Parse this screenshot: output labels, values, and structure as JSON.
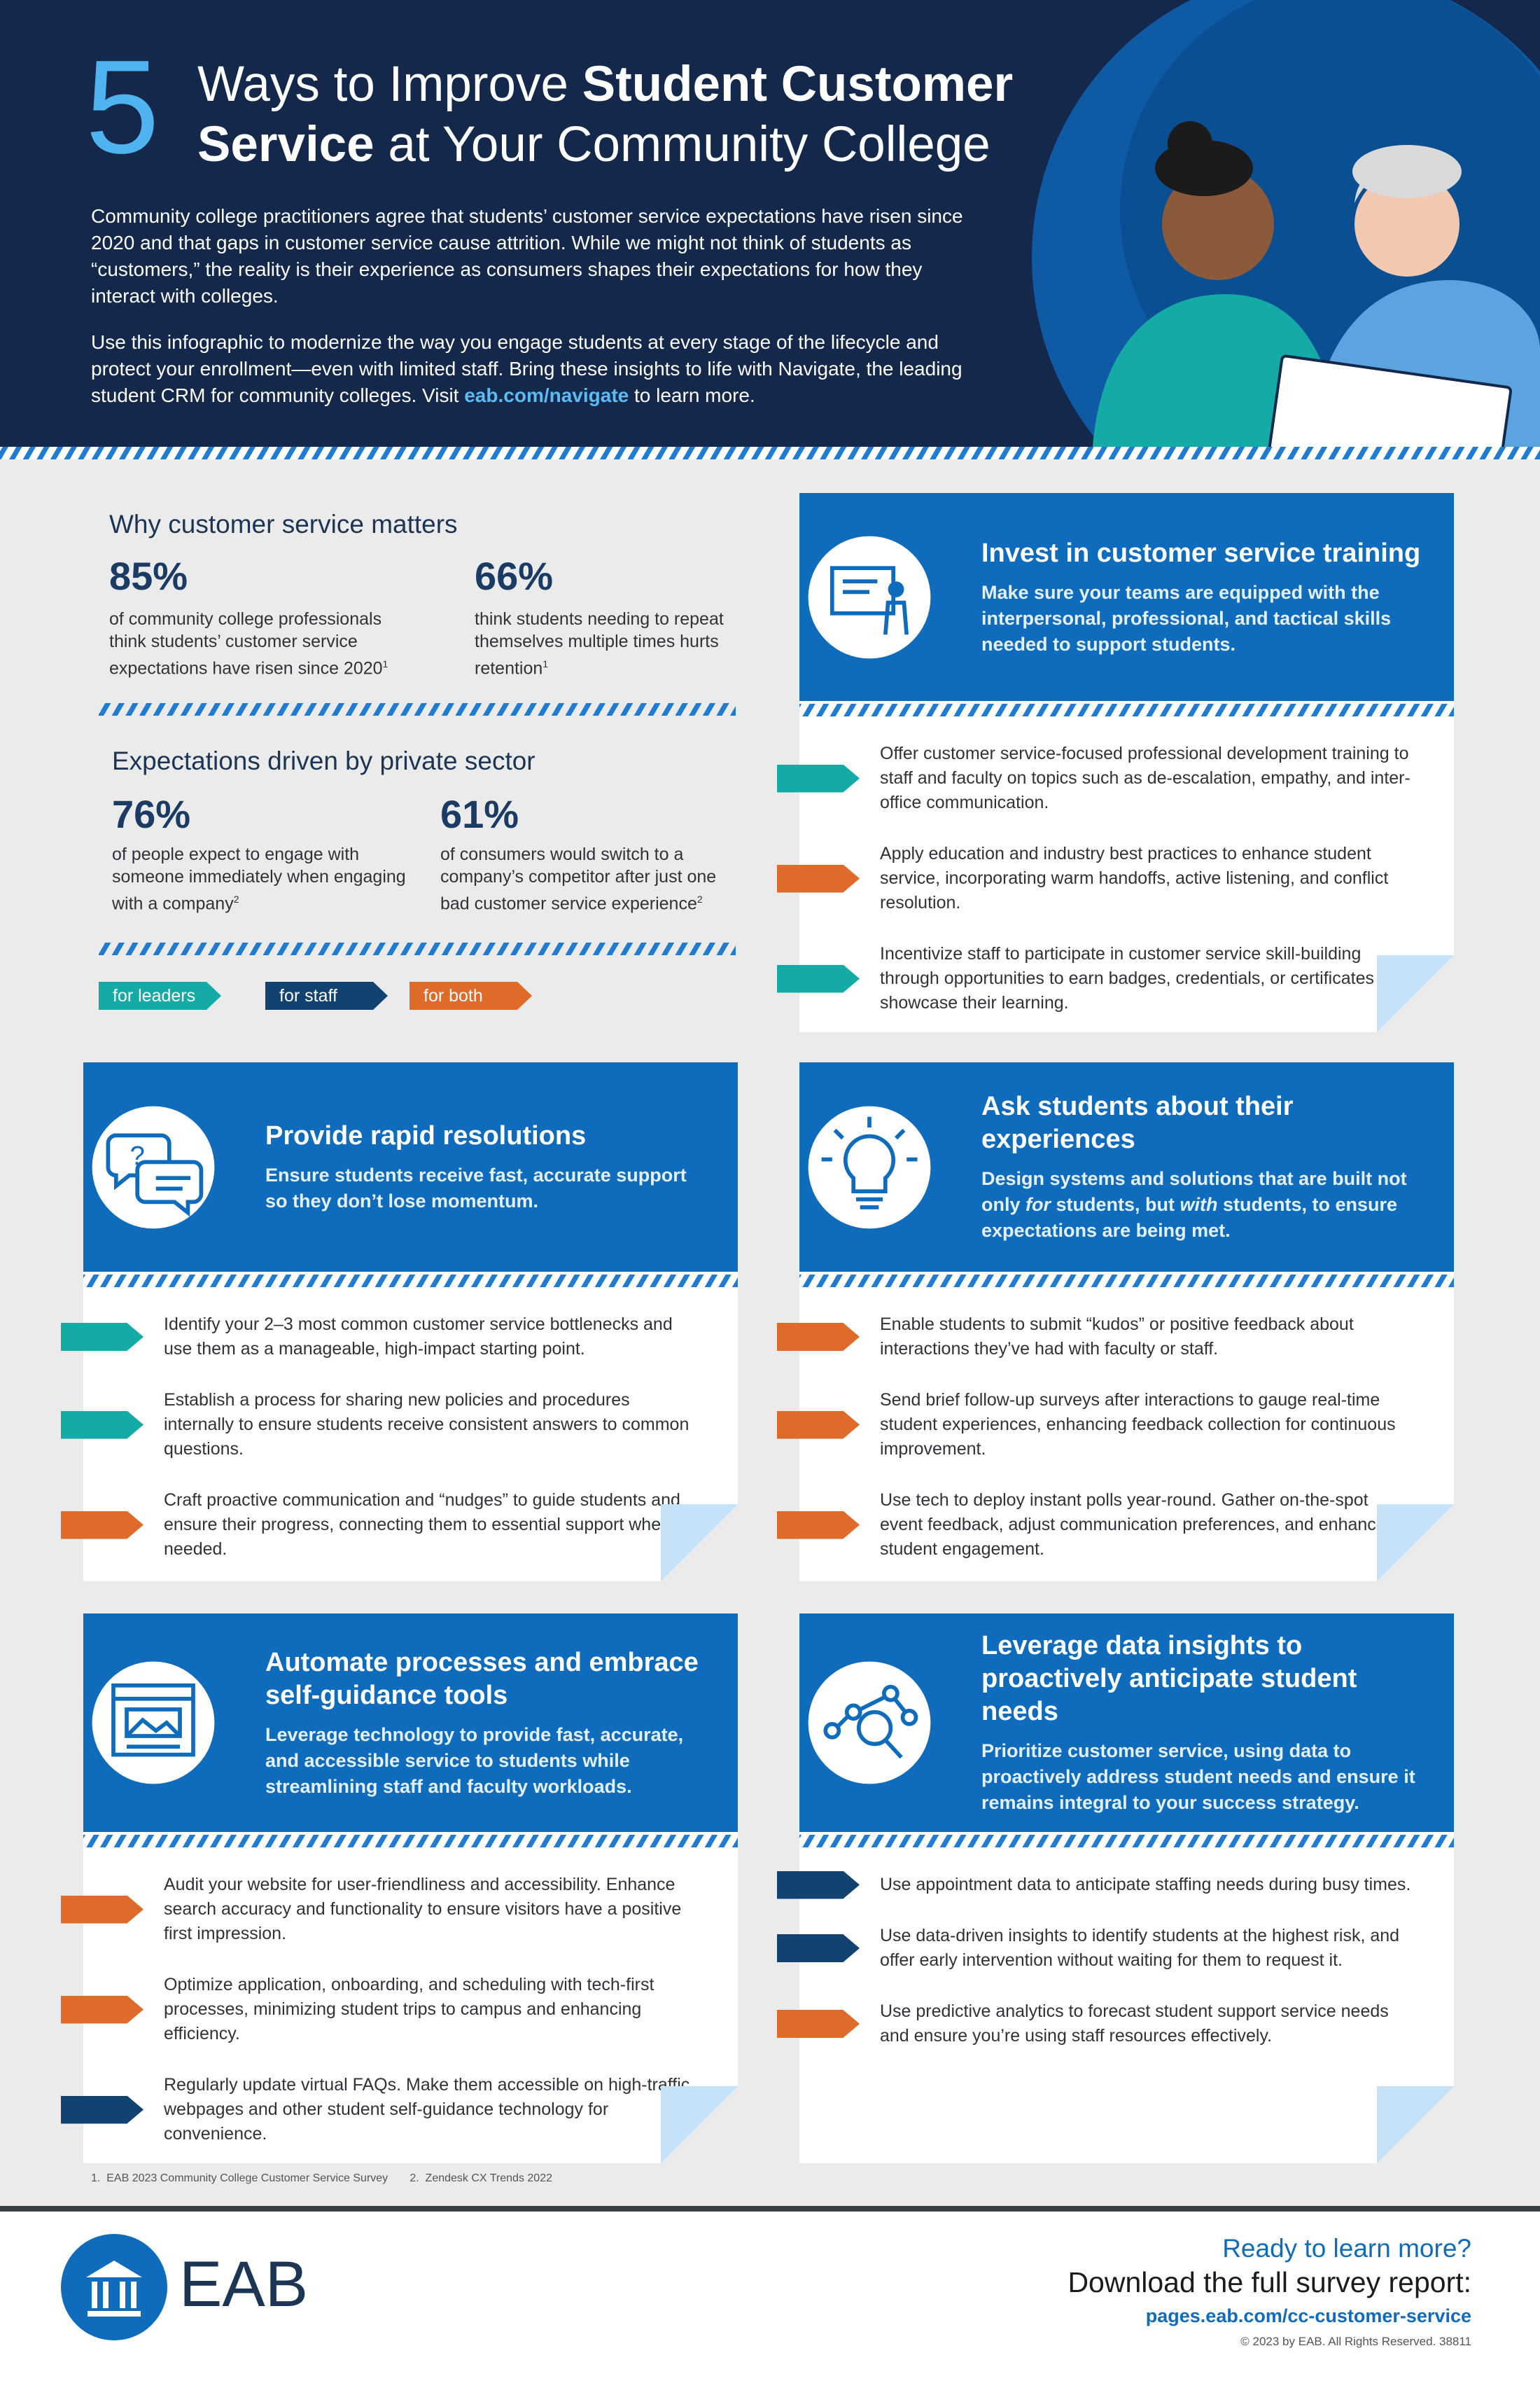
{
  "header": {
    "numeral": "5",
    "title": [
      [
        {
          "text": "Ways to Improve ",
          "bold": false
        },
        {
          "text": "Student Customer",
          "bold": true
        }
      ],
      [
        {
          "text": "Service",
          "bold": true
        },
        {
          "text": " at Your Community College",
          "bold": false
        }
      ]
    ],
    "paragraphs": [
      [
        {
          "text": "Community college practitioners agree that students’ customer service expectations have risen since 2020 and that gaps in customer service cause attrition. While we might not think of students as “customers,” the reality is their experience as consumers shapes their expectations for how they interact with colleges."
        }
      ],
      [
        {
          "text": "Use this infographic to modernize the way you engage students at every stage of the lifecycle and protect your enrollment—even with limited staff. Bring these insights to life with Navigate, the leading student CRM for community colleges. Visit "
        },
        {
          "text": "eab.com/navigate",
          "bold": true,
          "color": "#5bbcf5"
        },
        {
          "text": " to learn more."
        }
      ]
    ]
  },
  "stats": [
    {
      "heading": "Why customer service matters",
      "stats": [
        {
          "value": "85%",
          "text": "of community college professionals think students’ customer service expectations have risen since 2020",
          "note": "1"
        },
        {
          "value": "66%",
          "text": "think students needing to repeat themselves multiple times hurts retention",
          "note": "1"
        }
      ]
    },
    {
      "heading": "Expectations driven by private sector",
      "stats": [
        {
          "value": "76%",
          "text": "of people expect to engage with someone immediately when engaging with a company",
          "note": "2"
        },
        {
          "value": "61%",
          "text": "of consumers would switch to a company’s competitor after just one bad customer service experience",
          "note": "2"
        }
      ]
    }
  ],
  "legend": [
    {
      "label": "for leaders",
      "color": "#14aaa6"
    },
    {
      "label": "for staff",
      "color": "#12426f"
    },
    {
      "label": "for both",
      "color": "#de6b29"
    }
  ],
  "cards": [
    {
      "title": [
        {
          "text": "Invest in customer service training"
        }
      ],
      "description": [
        {
          "text": "Make sure your teams are equipped with the interpersonal, professional, and tactical skills needed to support students."
        }
      ],
      "items": [
        {
          "text": "Offer customer service-focused professional development training to staff and faculty on topics such as de-escalation, empathy, and inter-office communication.",
          "color": "#14aaa6"
        },
        {
          "text": "Apply education and industry best practices to enhance student service, incorporating warm handoffs, active listening, and conflict resolution.",
          "color": "#de6b29"
        },
        {
          "text": "Incentivize staff to participate in customer service skill-building through opportunities to earn badges, credentials, or certificates that showcase their learning.",
          "color": "#14aaa6"
        }
      ]
    },
    {
      "title": [
        {
          "text": "Provide rapid resolutions"
        }
      ],
      "description": [
        {
          "text": "Ensure students receive fast, accurate support so they don’t lose momentum."
        }
      ],
      "items": [
        {
          "text": "Identify your 2–3 most common customer service bottlenecks and use them as a manageable, high-impact starting point.",
          "color": "#14aaa6"
        },
        {
          "text": "Establish a process for sharing new policies and procedures internally to ensure students receive consistent answers to common questions.",
          "color": "#14aaa6"
        },
        {
          "text": "Craft proactive communication and “nudges” to guide students and ensure their progress, connecting them to essential support when needed.",
          "color": "#de6b29"
        }
      ]
    },
    {
      "title": [
        {
          "text": "Ask students about their experiences"
        }
      ],
      "description": [
        {
          "text": "Design systems and solutions that are built not only "
        },
        {
          "text": "for",
          "italic": true
        },
        {
          "text": " students, but "
        },
        {
          "text": "with",
          "italic": true
        },
        {
          "text": " students, to ensure expectations are being met."
        }
      ],
      "items": [
        {
          "text": "Enable students to submit “kudos” or positive feedback about interactions they’ve had with faculty or staff.",
          "color": "#de6b29"
        },
        {
          "text": "Send brief follow-up surveys after interactions to gauge real-time student experiences, enhancing feedback collection for continuous improvement.",
          "color": "#de6b29"
        },
        {
          "text": "Use tech to deploy instant polls year-round. Gather on-the-spot event feedback, adjust communication preferences, and enhance student engagement.",
          "color": "#de6b29"
        }
      ]
    },
    {
      "title": [
        {
          "text": "Automate processes and embrace self-guidance tools"
        }
      ],
      "description": [
        {
          "text": "Leverage technology to provide fast, accurate, and accessible service to students while streamlining staff and faculty workloads."
        }
      ],
      "items": [
        {
          "text": "Audit your website for user-friendliness and accessibility. Enhance search accuracy and functionality to ensure visitors have a positive first impression.",
          "color": "#de6b29"
        },
        {
          "text": "Optimize application, onboarding, and scheduling with tech-first processes, minimizing student trips to campus and enhancing efficiency.",
          "color": "#de6b29"
        },
        {
          "text": "Regularly update virtual FAQs. Make them accessible on high-traffic webpages and other student self-guidance technology for convenience.",
          "color": "#12426f"
        }
      ]
    },
    {
      "title": [
        {
          "text": "Leverage data insights to proactively anticipate student needs"
        }
      ],
      "description": [
        {
          "text": "Prioritize customer service, using data to proactively address student needs and ensure it remains integral to your success strategy."
        }
      ],
      "items": [
        {
          "text": "Use appointment data to anticipate staffing needs during busy times.",
          "color": "#12426f"
        },
        {
          "text": "Use data-driven insights to identify students at the highest risk, and offer early intervention without waiting for them to request it.",
          "color": "#12426f"
        },
        {
          "text": "Use predictive analytics to forecast student support service needs and ensure you’re using staff resources effectively.",
          "color": "#de6b29"
        }
      ]
    }
  ],
  "footnotes": [
    {
      "number": "1.",
      "text": "EAB 2023 Community College Customer Service Survey"
    },
    {
      "number": "2.",
      "text": "Zendesk CX Trends 2022"
    }
  ],
  "footer": {
    "logo": "EAB",
    "cta": "Ready to learn more?",
    "download": "Download the full survey report:",
    "url": "pages.eab.com/cc-customer-service",
    "copyright": "© 2023 by EAB. All Rights Reserved. 38811"
  }
}
